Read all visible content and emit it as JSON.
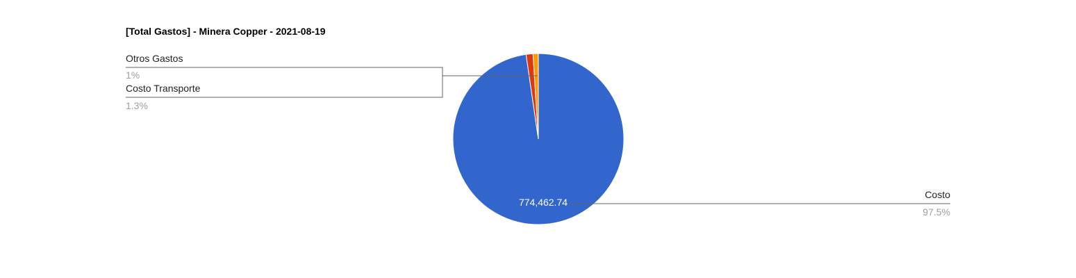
{
  "chart_data": {
    "type": "pie",
    "title": "[Total Gastos] - Minera Copper - 2021-08-19",
    "slices": [
      {
        "label": "Costo",
        "percent_label": "97.5%",
        "value_label": "774,462.74",
        "percent": 97.5,
        "color": "#3366cc"
      },
      {
        "label": "Costo Transporte",
        "percent_label": "1.3%",
        "percent": 1.3,
        "color": "#dc3912"
      },
      {
        "label": "Otros Gastos",
        "percent_label": "1%",
        "percent": 1.0,
        "color": "#ff9900"
      }
    ]
  }
}
